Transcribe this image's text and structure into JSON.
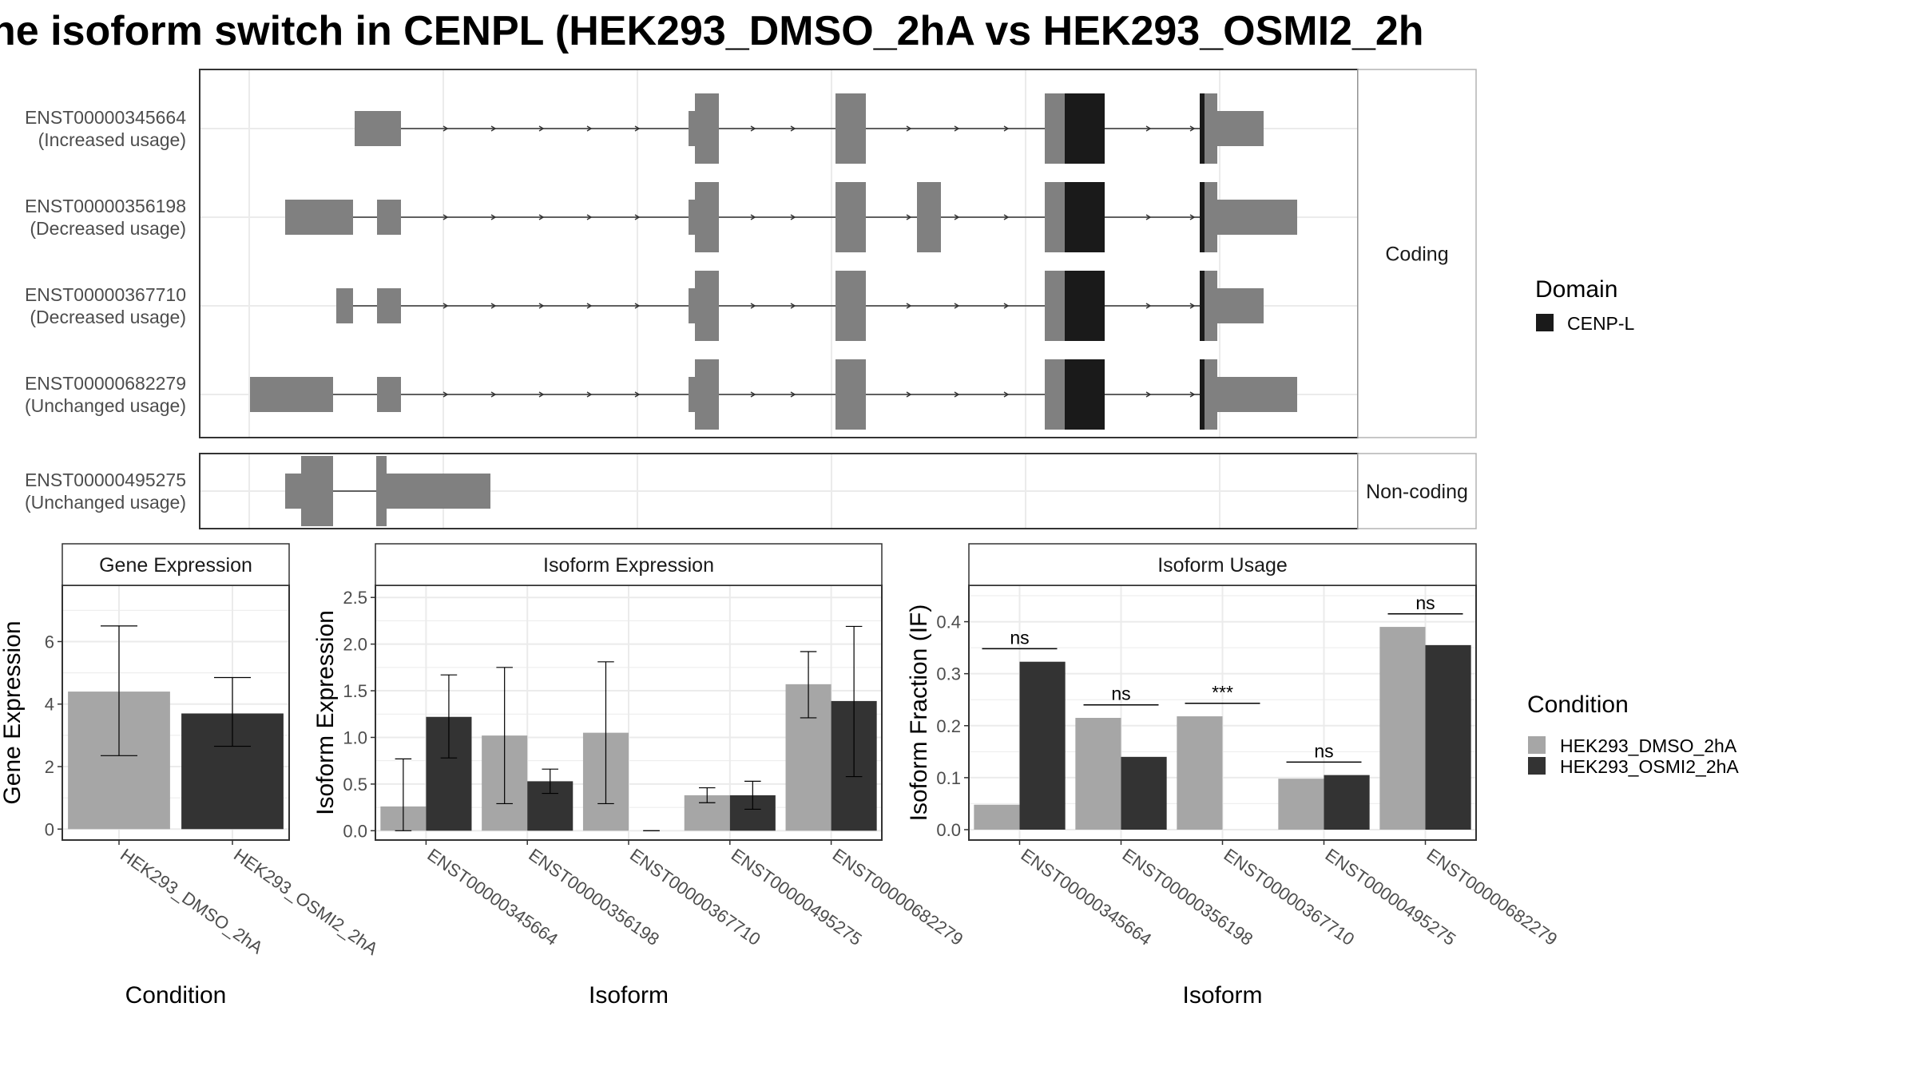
{
  "title": "ne isoform switch in CENPL (HEK293_DMSO_2hA vs HEK293_OSMI2_2h",
  "colors": {
    "dmso": "#a6a6a6",
    "osmi": "#333333",
    "exon": "#808080",
    "domain": "#1a1a1a",
    "grid": "#ebebeb",
    "strip_bg": "#ffffff",
    "panel_border": "#333333"
  },
  "structure": {
    "facets": [
      {
        "label": "Coding"
      },
      {
        "label": "Non-coding"
      }
    ],
    "isoforms": [
      {
        "id": "ENST00000345664",
        "usage": "(Increased usage)",
        "facet": 0
      },
      {
        "id": "ENST00000356198",
        "usage": "(Decreased usage)",
        "facet": 0
      },
      {
        "id": "ENST00000367710",
        "usage": "(Decreased usage)",
        "facet": 0
      },
      {
        "id": "ENST00000682279",
        "usage": "(Unchanged usage)",
        "facet": 0
      },
      {
        "id": "ENST00000495275",
        "usage": "(Unchanged usage)",
        "facet": 1
      }
    ]
  },
  "legend_domain": {
    "title": "Domain",
    "items": [
      {
        "label": "CENP-L",
        "color": "#1a1a1a"
      }
    ]
  },
  "legend_condition": {
    "title": "Condition",
    "items": [
      {
        "label": "HEK293_DMSO_2hA",
        "color": "#a6a6a6"
      },
      {
        "label": "HEK293_OSMI2_2hA",
        "color": "#333333"
      }
    ]
  },
  "chart_data": [
    {
      "type": "bar",
      "title": "Gene Expression",
      "xlabel": "Condition",
      "ylabel": "Gene Expression",
      "categories": [
        "HEK293_DMSO_2hA",
        "HEK293_OSMI2_2hA"
      ],
      "values": [
        4.4,
        3.7
      ],
      "error_low": [
        2.35,
        2.65
      ],
      "error_high": [
        6.5,
        4.85
      ],
      "colors": [
        "#a6a6a6",
        "#333333"
      ],
      "ylim": [
        -0.35,
        7.8
      ],
      "yticks": [
        0,
        2,
        4,
        6
      ]
    },
    {
      "type": "bar",
      "title": "Isoform Expression",
      "xlabel": "Isoform",
      "ylabel": "Isoform Expression",
      "categories": [
        "ENST00000345664",
        "ENST00000356198",
        "ENST00000367710",
        "ENST00000495275",
        "ENST00000682279"
      ],
      "series": [
        {
          "name": "HEK293_DMSO_2hA",
          "values": [
            0.26,
            1.02,
            1.05,
            0.38,
            1.57
          ],
          "error_low": [
            0.0,
            0.29,
            0.29,
            0.3,
            1.21
          ],
          "error_high": [
            0.77,
            1.75,
            1.81,
            0.46,
            1.92
          ]
        },
        {
          "name": "HEK293_OSMI2_2hA",
          "values": [
            1.22,
            0.53,
            0.0,
            0.38,
            1.39
          ],
          "error_low": [
            0.78,
            0.4,
            0.0,
            0.23,
            0.58
          ],
          "error_high": [
            1.67,
            0.66,
            0.0,
            0.53,
            2.19
          ]
        }
      ],
      "ylim": [
        -0.1,
        2.63
      ],
      "yticks": [
        0.0,
        0.5,
        1.0,
        1.5,
        2.0,
        2.5
      ]
    },
    {
      "type": "bar",
      "title": "Isoform Usage",
      "xlabel": "Isoform",
      "ylabel": "Isoform Fraction (IF)",
      "categories": [
        "ENST00000345664",
        "ENST00000356198",
        "ENST00000367710",
        "ENST00000495275",
        "ENST00000682279"
      ],
      "series": [
        {
          "name": "HEK293_DMSO_2hA",
          "values": [
            0.048,
            0.215,
            0.218,
            0.098,
            0.39
          ]
        },
        {
          "name": "HEK293_OSMI2_2hA",
          "values": [
            0.323,
            0.14,
            0.0,
            0.105,
            0.355
          ]
        }
      ],
      "significance": [
        "ns",
        "ns",
        "***",
        "ns",
        "ns"
      ],
      "ylim": [
        -0.02,
        0.47
      ],
      "yticks": [
        0.0,
        0.1,
        0.2,
        0.3,
        0.4
      ]
    }
  ]
}
